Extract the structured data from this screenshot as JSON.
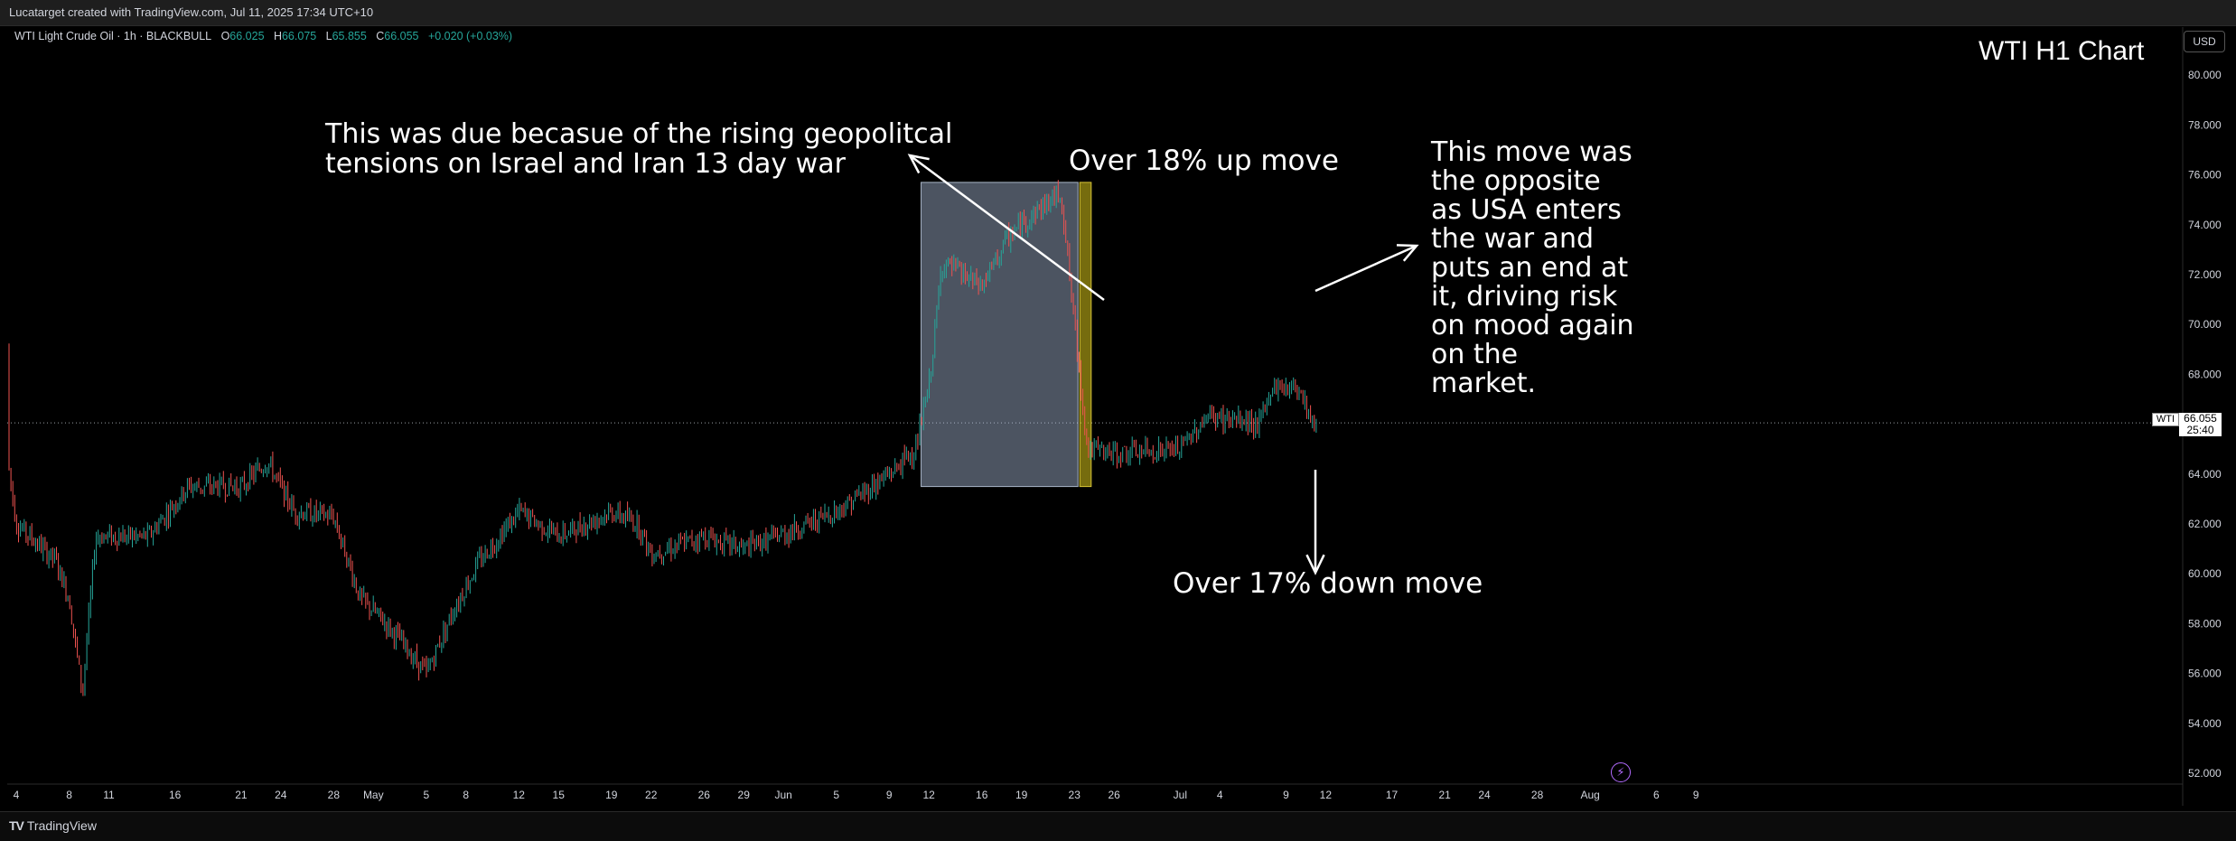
{
  "header": {
    "credit": "Lucatarget created with TradingView.com, Jul 11, 2025 17:34 UTC+10"
  },
  "legend": {
    "symbol": "WTI Light Crude Oil · 1h · BLACKBULL",
    "o_label": "O",
    "o_value": "66.025",
    "h_label": "H",
    "h_value": "66.075",
    "l_label": "L",
    "l_value": "65.855",
    "c_label": "C",
    "c_value": "66.055",
    "change": "+0.020 (+0.03%)"
  },
  "currency_button": "USD",
  "watermark": "WTI H1 Chart",
  "annotations": {
    "geopolitics": "This was due becasue of the rising geopolitcal\ntensions on Israel and Iran 13 day war",
    "up_move": "Over 18% up move",
    "opposite": "This move was\nthe opposite\nas USA enters\nthe war and\nputs an end at\nit, driving risk\non mood again\non the\nmarket.",
    "down_move": "Over 17% down move"
  },
  "price_tag": {
    "symbol": "WTI",
    "price": "66.055",
    "countdown": "25:40"
  },
  "footer": {
    "brand": "TradingView"
  },
  "icons": {
    "logo": "tradingview-logo-icon",
    "flash": "lightning-icon"
  },
  "colors": {
    "up": "#26a69a",
    "down": "#ef5350",
    "background": "#000000",
    "up_zone": "#b4c8e6",
    "down_zone": "#d7c51a"
  },
  "chart_data": {
    "type": "candlestick",
    "timeframe": "1h",
    "x_tick_labels": [
      "4",
      "8",
      "11",
      "16",
      "21",
      "24",
      "28",
      "May",
      "5",
      "8",
      "12",
      "15",
      "19",
      "22",
      "26",
      "29",
      "Jun",
      "5",
      "9",
      "12",
      "16",
      "19",
      "23",
      "26",
      "Jul",
      "4",
      "9",
      "12",
      "17",
      "21",
      "24",
      "28",
      "Aug",
      "6",
      "9"
    ],
    "y_ticks": [
      52,
      54,
      56,
      58,
      60,
      62,
      64,
      66,
      68,
      70,
      72,
      74,
      76,
      78,
      80
    ],
    "y_tick_labels": [
      "52.000",
      "54.000",
      "56.000",
      "58.000",
      "60.000",
      "62.000",
      "64.000",
      "66.000",
      "68.000",
      "70.000",
      "72.000",
      "74.000",
      "76.000",
      "78.000",
      "80.000"
    ],
    "ylim": [
      51.4,
      81.0
    ],
    "last_price": 66.055,
    "path_keypoints": [
      [
        "Apr 3",
        69.2
      ],
      [
        "Apr 3",
        66.0
      ],
      [
        "Apr 4",
        62.0
      ],
      [
        "Apr 7",
        60.5
      ],
      [
        "Apr 8",
        59.0
      ],
      [
        "Apr 9",
        55.2
      ],
      [
        "Apr 10",
        61.5
      ],
      [
        "Apr 14",
        61.5
      ],
      [
        "Apr 17",
        63.5
      ],
      [
        "Apr 21",
        63.5
      ],
      [
        "Apr 23",
        64.5
      ],
      [
        "Apr 25",
        62.5
      ],
      [
        "Apr 28",
        62.3
      ],
      [
        "Apr 30",
        59.0
      ],
      [
        "May 2",
        58.0
      ],
      [
        "May 5",
        56.0
      ],
      [
        "May 7",
        58.5
      ],
      [
        "May 9",
        60.5
      ],
      [
        "May 12",
        62.5
      ],
      [
        "May 15",
        61.5
      ],
      [
        "May 19",
        62.5
      ],
      [
        "May 21",
        62.0
      ],
      [
        "May 22",
        60.8
      ],
      [
        "May 26",
        61.5
      ],
      [
        "May 29",
        61.0
      ],
      [
        "Jun 2",
        61.8
      ],
      [
        "Jun 5",
        62.5
      ],
      [
        "Jun 9",
        64.0
      ],
      [
        "Jun 11",
        65.0
      ],
      [
        "Jun 12",
        67.5
      ],
      [
        "Jun 13",
        72.5
      ],
      [
        "Jun 16",
        71.5
      ],
      [
        "Jun 18",
        73.5
      ],
      [
        "Jun 20",
        74.5
      ],
      [
        "Jun 22",
        75.3
      ],
      [
        "Jun 23",
        70.0
      ],
      [
        "Jun 24",
        65.0
      ],
      [
        "Jun 26",
        64.8
      ],
      [
        "Jul 1",
        65.0
      ],
      [
        "Jul 3",
        66.3
      ],
      [
        "Jul 7",
        66.0
      ],
      [
        "Jul 8",
        67.5
      ],
      [
        "Jul 10",
        67.5
      ],
      [
        "Jul 11",
        66.05
      ]
    ],
    "rectangles": [
      {
        "label": "up_zone",
        "from": "Jun 11",
        "to": "Jun 23",
        "low": 63.5,
        "high": 75.7
      },
      {
        "label": "down_zone",
        "from": "Jun 23",
        "to": "Jun 24",
        "low": 63.5,
        "high": 75.7
      }
    ]
  }
}
